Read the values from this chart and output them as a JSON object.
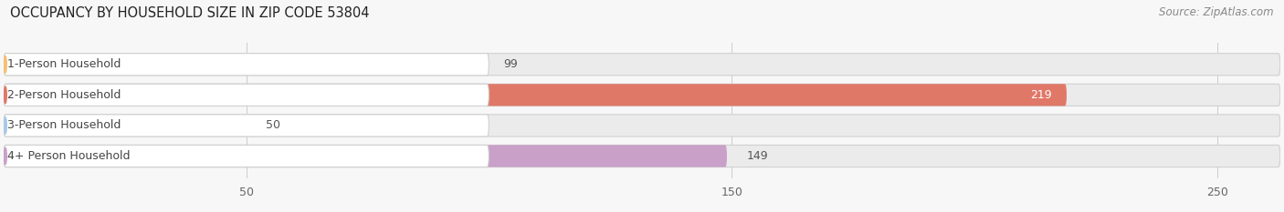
{
  "title": "OCCUPANCY BY HOUSEHOLD SIZE IN ZIP CODE 53804",
  "source": "Source: ZipAtlas.com",
  "categories": [
    "1-Person Household",
    "2-Person Household",
    "3-Person Household",
    "4+ Person Household"
  ],
  "values": [
    99,
    219,
    50,
    149
  ],
  "bar_colors": [
    "#f5c070",
    "#e07868",
    "#a8c8e8",
    "#c8a0c8"
  ],
  "bar_bg_color": "#ebebeb",
  "xlim_max": 263,
  "xticks": [
    50,
    150,
    250
  ],
  "title_fontsize": 10.5,
  "source_fontsize": 8.5,
  "label_fontsize": 9,
  "value_fontsize": 9,
  "tick_fontsize": 9,
  "bg_color": "#f7f7f7",
  "label_box_color": "#ffffff",
  "label_text_color": "#444444",
  "grid_color": "#cccccc",
  "value_color_inside": "#ffffff",
  "value_color_outside": "#555555"
}
